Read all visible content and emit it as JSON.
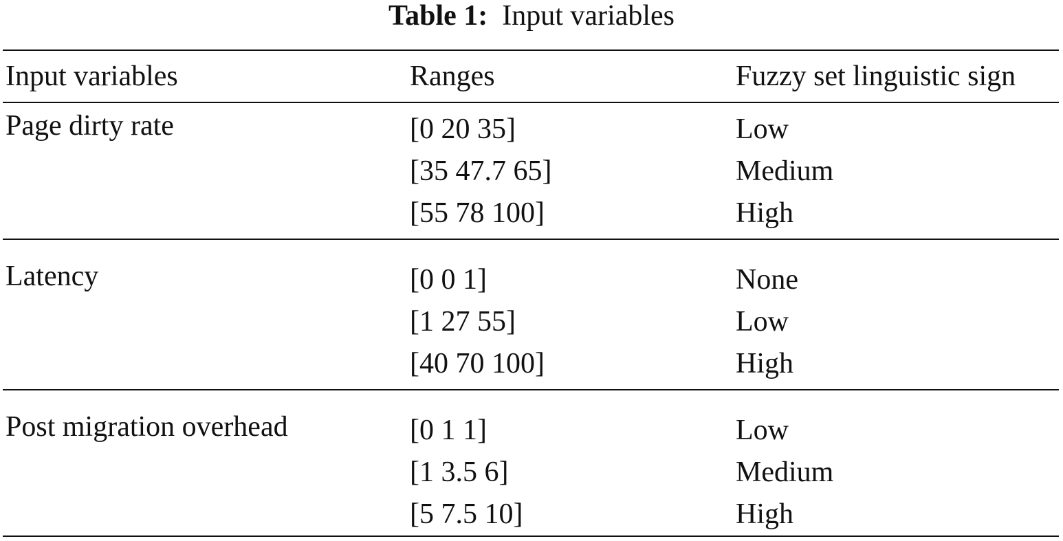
{
  "caption": {
    "label": "Table 1:",
    "text": "Input variables"
  },
  "table": {
    "headers": [
      "Input variables",
      "Ranges",
      "Fuzzy set linguistic sign"
    ],
    "groups": [
      {
        "variable": "Page dirty rate",
        "rows": [
          {
            "range": "[0 20 35]",
            "sign": "Low"
          },
          {
            "range": "[35 47.7 65]",
            "sign": "Medium"
          },
          {
            "range": "[55 78 100]",
            "sign": "High"
          }
        ]
      },
      {
        "variable": "Latency",
        "rows": [
          {
            "range": "[0 0 1]",
            "sign": "None"
          },
          {
            "range": "[1 27 55]",
            "sign": "Low"
          },
          {
            "range": "[40 70 100]",
            "sign": "High"
          }
        ]
      },
      {
        "variable": "Post migration overhead",
        "rows": [
          {
            "range": "[0 1 1]",
            "sign": "Low"
          },
          {
            "range": "[1 3.5 6]",
            "sign": "Medium"
          },
          {
            "range": "[5 7.5 10]",
            "sign": "High"
          }
        ]
      }
    ]
  }
}
